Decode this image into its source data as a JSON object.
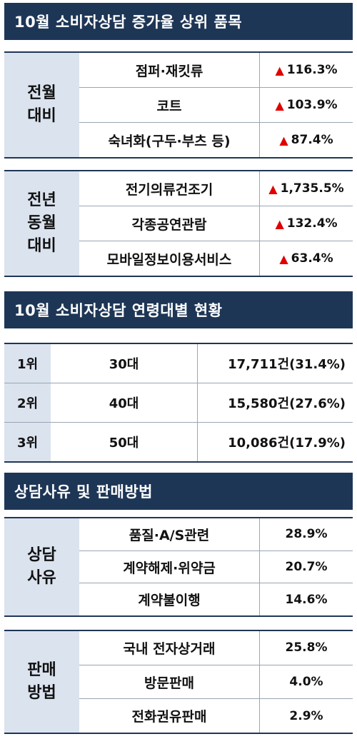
{
  "section1": {
    "title": "10월 소비자상담 증가율 상위 품목",
    "groups": [
      {
        "header": "전월\n대비",
        "rows": [
          {
            "item": "점퍼·재킷류",
            "rate": "116.3%"
          },
          {
            "item": "코트",
            "rate": "103.9%"
          },
          {
            "item": "숙녀화(구두·부츠 등)",
            "rate": "87.4%"
          }
        ]
      },
      {
        "header": "전년\n동월\n대비",
        "rows": [
          {
            "item": "전기의류건조기",
            "rate": "1,735.5%"
          },
          {
            "item": "각종공연관람",
            "rate": "132.4%"
          },
          {
            "item": "모바일정보이용서비스",
            "rate": "63.4%"
          }
        ]
      }
    ],
    "arrow_icon": "up-arrow-icon",
    "arrow_color": "#e00000"
  },
  "section2": {
    "title": "10월 소비자상담 연령대별 현황",
    "rows": [
      {
        "rank": "1위",
        "age": "30대",
        "count": "17,711건(31.4%)"
      },
      {
        "rank": "2위",
        "age": "40대",
        "count": "15,580건(27.6%)"
      },
      {
        "rank": "3위",
        "age": "50대",
        "count": "10,086건(17.9%)"
      }
    ]
  },
  "section3": {
    "title": "상담사유 및 판매방법",
    "groups": [
      {
        "header": "상담\n사유",
        "rows": [
          {
            "item": "품질·A/S관련",
            "share": "28.9%"
          },
          {
            "item": "계약해제·위약금",
            "share": "20.7%"
          },
          {
            "item": "계약불이행",
            "share": "14.6%"
          }
        ]
      },
      {
        "header": "판매\n방법",
        "rows": [
          {
            "item": "국내 전자상거래",
            "share": "25.8%"
          },
          {
            "item": "방문판매",
            "share": "4.0%"
          },
          {
            "item": "전화권유판매",
            "share": "2.9%"
          }
        ]
      }
    ]
  },
  "colors": {
    "banner": "#1e3656",
    "header_cell": "#dbe3ef",
    "arrow": "#e00000"
  }
}
